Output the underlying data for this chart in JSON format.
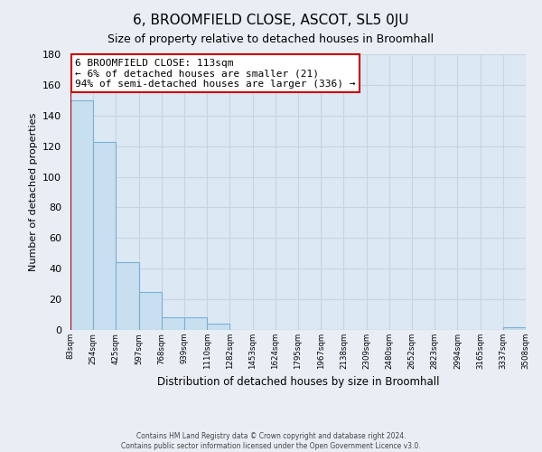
{
  "title": "6, BROOMFIELD CLOSE, ASCOT, SL5 0JU",
  "subtitle": "Size of property relative to detached houses in Broomhall",
  "bar_heights": [
    150,
    123,
    44,
    25,
    8,
    8,
    4,
    0,
    0,
    0,
    0,
    0,
    0,
    0,
    0,
    0,
    0,
    0,
    0,
    2
  ],
  "bin_labels": [
    "83sqm",
    "254sqm",
    "425sqm",
    "597sqm",
    "768sqm",
    "939sqm",
    "1110sqm",
    "1282sqm",
    "1453sqm",
    "1624sqm",
    "1795sqm",
    "1967sqm",
    "2138sqm",
    "2309sqm",
    "2480sqm",
    "2652sqm",
    "2823sqm",
    "2994sqm",
    "3165sqm",
    "3337sqm",
    "3508sqm"
  ],
  "bar_color": "#c8dff0",
  "bar_edge_color": "#7ab0d4",
  "red_line_bar_index": 0,
  "outline_color": "#aa0000",
  "annotation_text": "6 BROOMFIELD CLOSE: 113sqm\n← 6% of detached houses are smaller (21)\n94% of semi-detached houses are larger (336) →",
  "annotation_box_color": "#ffffff",
  "annotation_box_edge_color": "#cc0000",
  "ylabel": "Number of detached properties",
  "xlabel": "Distribution of detached houses by size in Broomhall",
  "ylim": [
    0,
    180
  ],
  "yticks": [
    0,
    20,
    40,
    60,
    80,
    100,
    120,
    140,
    160,
    180
  ],
  "footer_line1": "Contains HM Land Registry data © Crown copyright and database right 2024.",
  "footer_line2": "Contains public sector information licensed under the Open Government Licence v3.0.",
  "background_color": "#e8eef4",
  "grid_color": "#c8d4e0",
  "plot_bg_color": "#dce8f4"
}
